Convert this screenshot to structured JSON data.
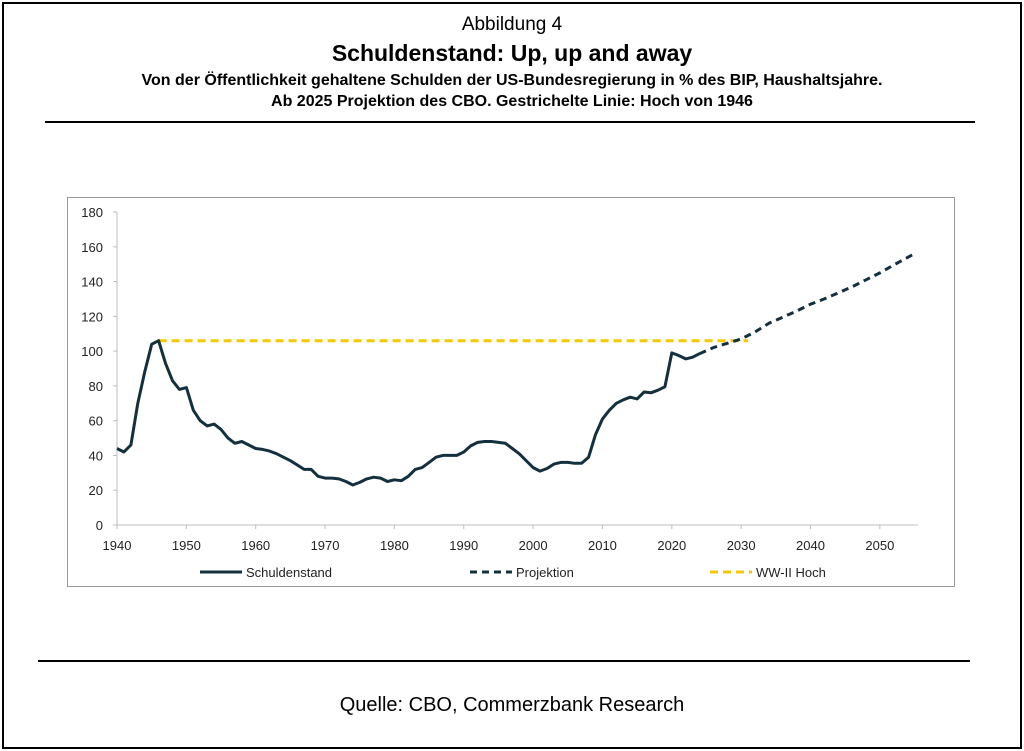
{
  "figure": {
    "label": "Abbildung 4",
    "title": "Schuldenstand: Up, up and away",
    "subtitle_line1": "Von der Öffentlichkeit gehaltene Schulden der US-Bundesregierung in % des BIP, Haushaltsjahre.",
    "subtitle_line2": "Ab 2025 Projektion des CBO. Gestrichelte Linie: Hoch von 1946",
    "source": "Quelle: CBO, Commerzbank Research"
  },
  "colors": {
    "debt": "#14303f",
    "projection": "#14303f",
    "ww2": "#f6c800",
    "axis": "#bdbdbd",
    "text": "#000000"
  },
  "chart_data": {
    "type": "line",
    "title": "",
    "xlabel": "",
    "ylabel": "",
    "xlim": [
      1940,
      2056
    ],
    "ylim": [
      0,
      180
    ],
    "x_ticks": [
      1940,
      1950,
      1960,
      1970,
      1980,
      1990,
      2000,
      2010,
      2020,
      2030,
      2040,
      2050
    ],
    "y_ticks": [
      0,
      20,
      40,
      60,
      80,
      100,
      120,
      140,
      160,
      180
    ],
    "grid": false,
    "legend_position": "bottom",
    "series": [
      {
        "name": "Schuldenstand",
        "style": "solid",
        "color": "#14303f",
        "x": [
          1940,
          1941,
          1942,
          1943,
          1944,
          1945,
          1946,
          1947,
          1948,
          1949,
          1950,
          1951,
          1952,
          1953,
          1954,
          1955,
          1956,
          1957,
          1958,
          1959,
          1960,
          1961,
          1962,
          1963,
          1964,
          1965,
          1966,
          1967,
          1968,
          1969,
          1970,
          1971,
          1972,
          1973,
          1974,
          1975,
          1976,
          1977,
          1978,
          1979,
          1980,
          1981,
          1982,
          1983,
          1984,
          1985,
          1986,
          1987,
          1988,
          1989,
          1990,
          1991,
          1992,
          1993,
          1994,
          1995,
          1996,
          1997,
          1998,
          1999,
          2000,
          2001,
          2002,
          2003,
          2004,
          2005,
          2006,
          2007,
          2008,
          2009,
          2010,
          2011,
          2012,
          2013,
          2014,
          2015,
          2016,
          2017,
          2018,
          2019,
          2020,
          2021,
          2022,
          2023,
          2024
        ],
        "y": [
          44,
          42,
          46,
          70,
          88,
          104,
          106,
          93,
          83,
          78,
          79,
          66,
          60,
          57,
          58,
          55,
          50,
          47,
          48,
          46,
          44,
          43.5,
          42.5,
          41,
          39,
          37,
          34.5,
          32,
          32,
          28,
          27,
          27,
          26.5,
          25,
          23,
          24.5,
          26.5,
          27.5,
          27,
          25,
          26,
          25.5,
          28,
          32,
          33,
          36,
          39,
          40,
          40,
          40,
          42,
          45.5,
          47.5,
          48,
          48,
          47.5,
          47,
          44,
          41,
          37,
          33,
          31,
          32.5,
          35,
          36,
          36,
          35.5,
          35.5,
          39,
          52,
          61,
          66,
          70,
          72,
          73.5,
          72.5,
          76.5,
          76,
          77.5,
          79.5,
          99,
          97.5,
          95.5,
          96.5,
          98.5
        ]
      },
      {
        "name": "Projektion",
        "style": "dashed",
        "color": "#14303f",
        "x": [
          2024,
          2026,
          2028,
          2030,
          2032,
          2034,
          2036,
          2038,
          2040,
          2042,
          2044,
          2046,
          2048,
          2050,
          2052,
          2055
        ],
        "y": [
          98.5,
          102,
          104.5,
          107,
          111,
          116,
          119.5,
          123,
          127,
          130,
          133.5,
          137,
          141,
          145,
          149.5,
          156
        ]
      },
      {
        "name": "WW-II Hoch",
        "style": "dashed",
        "color": "#f6c800",
        "x": [
          1946,
          2031
        ],
        "y": [
          106,
          106
        ]
      }
    ]
  }
}
